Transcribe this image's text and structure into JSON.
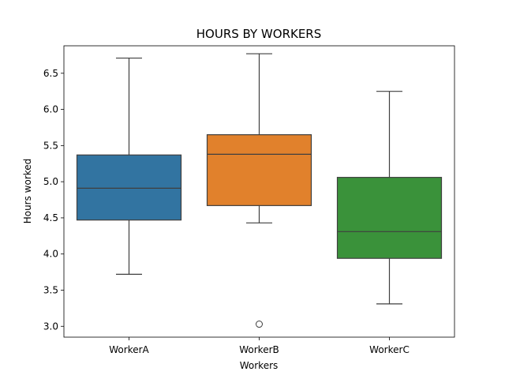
{
  "chart_data": {
    "type": "box",
    "title": "HOURS BY WORKERS",
    "xlabel": "Workers",
    "ylabel": "Hours worked",
    "categories": [
      "WorkerA",
      "WorkerB",
      "WorkerC"
    ],
    "ylim": [
      2.85,
      6.88
    ],
    "yticks": [
      "3.0",
      "3.5",
      "4.0",
      "4.5",
      "5.0",
      "5.5",
      "6.0",
      "6.5"
    ],
    "grid": false,
    "boxes": [
      {
        "category": "WorkerA",
        "color": "#3274a1",
        "whisker_low": 3.72,
        "q1": 4.47,
        "median": 4.91,
        "q3": 5.37,
        "whisker_high": 6.71,
        "outliers": []
      },
      {
        "category": "WorkerB",
        "color": "#e1812c",
        "whisker_low": 4.43,
        "q1": 4.67,
        "median": 5.38,
        "q3": 5.65,
        "whisker_high": 6.77,
        "outliers": [
          3.03
        ]
      },
      {
        "category": "WorkerC",
        "color": "#3a923a",
        "whisker_low": 3.31,
        "q1": 3.94,
        "median": 4.31,
        "q3": 5.06,
        "whisker_high": 6.25,
        "outliers": []
      }
    ]
  }
}
